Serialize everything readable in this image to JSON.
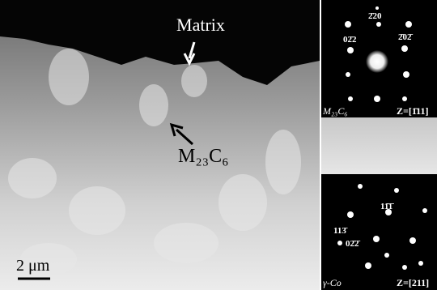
{
  "micrograph": {
    "matrix_label": "Matrix",
    "phase_label": "M₂₃C₆",
    "scale_bar": "2 μm"
  },
  "pattern_top": {
    "spots": [
      "2̄20",
      "02̄2",
      "2̄02̄"
    ],
    "phase": "M₂₃C₆",
    "zone": "Z=[1̄11]"
  },
  "pattern_bottom": {
    "spots": [
      "11̄1̄",
      "113̄",
      "02̄2̄"
    ],
    "phase": "γ-Co",
    "zone": "Z=[211]"
  }
}
